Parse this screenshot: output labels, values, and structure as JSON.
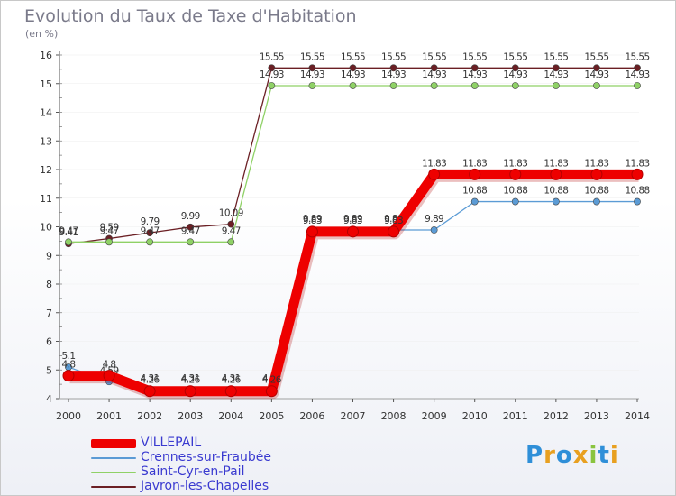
{
  "chart_data": {
    "type": "line",
    "title": "Evolution du Taux de Taxe d'Habitation",
    "subtitle": "(en %)",
    "x": [
      "2000",
      "2001",
      "2002",
      "2003",
      "2004",
      "2005",
      "2006",
      "2007",
      "2008",
      "2009",
      "2010",
      "2011",
      "2012",
      "2013",
      "2014"
    ],
    "ylim": [
      4,
      16
    ],
    "yticks": [
      "4",
      "5",
      "6",
      "7",
      "8",
      "9",
      "10",
      "11",
      "12",
      "13",
      "14",
      "15",
      "16"
    ],
    "grid": false,
    "legend_position": "bottom-left",
    "series": [
      {
        "name": "Javron-les-Chapelles",
        "color": "#6b1f24",
        "thick": false,
        "values": [
          9.41,
          9.59,
          9.79,
          9.99,
          10.09,
          15.55,
          15.55,
          15.55,
          15.55,
          15.55,
          15.55,
          15.55,
          15.55,
          15.55,
          15.55
        ],
        "labels": [
          "9.41",
          "9.59",
          "9.79",
          "9.99",
          "10.09",
          "15.55",
          "15.55",
          "15.55",
          "15.55",
          "15.55",
          "15.55",
          "15.55",
          "15.55",
          "15.55",
          "15.55"
        ]
      },
      {
        "name": "Saint-Cyr-en-Pail",
        "color": "#8fd166",
        "thick": false,
        "values": [
          9.47,
          9.47,
          9.47,
          9.47,
          9.47,
          14.93,
          14.93,
          14.93,
          14.93,
          14.93,
          14.93,
          14.93,
          14.93,
          14.93,
          14.93
        ],
        "labels": [
          "9.47",
          "9.47",
          "9.47",
          "9.47",
          "9.47",
          "14.93",
          "14.93",
          "14.93",
          "14.93",
          "14.93",
          "14.93",
          "14.93",
          "14.93",
          "14.93",
          "14.93"
        ]
      },
      {
        "name": "Crennes-sur-Fraubée",
        "color": "#5b9bd5",
        "thick": false,
        "values": [
          5.1,
          4.59,
          4.31,
          4.31,
          4.31,
          4.31,
          9.89,
          9.89,
          9.89,
          9.89,
          10.88,
          10.88,
          10.88,
          10.88,
          10.88
        ],
        "labels": [
          "5.1",
          "4.59",
          "4.31",
          "4.31",
          "4.31",
          "4.31",
          "9.89",
          "9.89",
          "9.89",
          "9.89",
          "10.88",
          "10.88",
          "10.88",
          "10.88",
          "10.88"
        ]
      },
      {
        "name": "VILLEPAIL",
        "color": "#ee0000",
        "thick": true,
        "values": [
          4.8,
          4.8,
          4.26,
          4.26,
          4.26,
          4.26,
          9.83,
          9.83,
          9.83,
          11.83,
          11.83,
          11.83,
          11.83,
          11.83,
          11.83
        ],
        "labels": [
          "4.8",
          "4.8",
          "4.26",
          "4.26",
          "4.26",
          "4.26",
          "9.83",
          "9.83",
          "9.83",
          "11.83",
          "11.83",
          "11.83",
          "11.83",
          "11.83",
          "11.83"
        ]
      }
    ]
  },
  "legend": [
    {
      "name": "VILLEPAIL",
      "color": "#ee0000",
      "text_color": "#3a3ad0",
      "thick": true
    },
    {
      "name": "Crennes-sur-Fraubée",
      "color": "#5b9bd5",
      "text_color": "#3a3ad0",
      "thick": false
    },
    {
      "name": "Saint-Cyr-en-Pail",
      "color": "#8fd166",
      "text_color": "#3a3ad0",
      "thick": false
    },
    {
      "name": "Javron-les-Chapelles",
      "color": "#6b1f24",
      "text_color": "#3a3ad0",
      "thick": false
    }
  ],
  "logo": {
    "letters": [
      "P",
      "r",
      "o",
      "x",
      "i",
      "t",
      "i"
    ],
    "colors": [
      "#2f8fd8",
      "#e8a020",
      "#2f8fd8",
      "#e8a020",
      "#8ac43f",
      "#2f8fd8",
      "#e8a020"
    ]
  }
}
